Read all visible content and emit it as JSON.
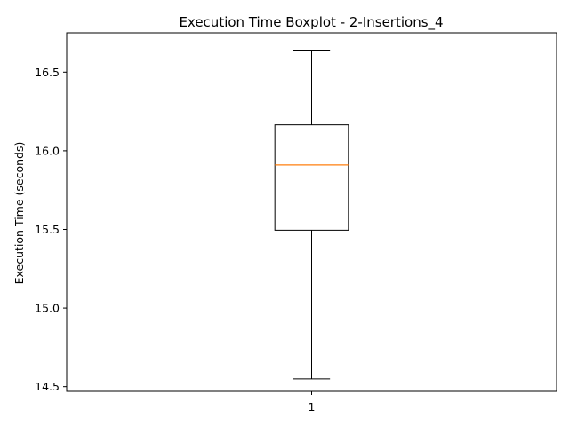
{
  "chart_data": {
    "type": "boxplot",
    "title": "Execution Time Boxplot - 2-Insertions_4",
    "xlabel": "",
    "ylabel": "Execution Time (seconds)",
    "categories": [
      "1"
    ],
    "boxes": [
      {
        "category": "1",
        "whisker_low": 14.55,
        "q1": 15.495,
        "median": 15.91,
        "q3": 16.165,
        "whisker_high": 16.64
      }
    ],
    "ylim": [
      14.47,
      16.75
    ],
    "yticks": [
      14.5,
      15.0,
      15.5,
      16.0,
      16.5
    ],
    "ytick_labels": [
      "14.5",
      "15.0",
      "15.5",
      "16.0",
      "16.5"
    ],
    "grid": false,
    "colors": {
      "box": "#000000",
      "median": "#ff7f0e",
      "whisker": "#000000"
    }
  }
}
